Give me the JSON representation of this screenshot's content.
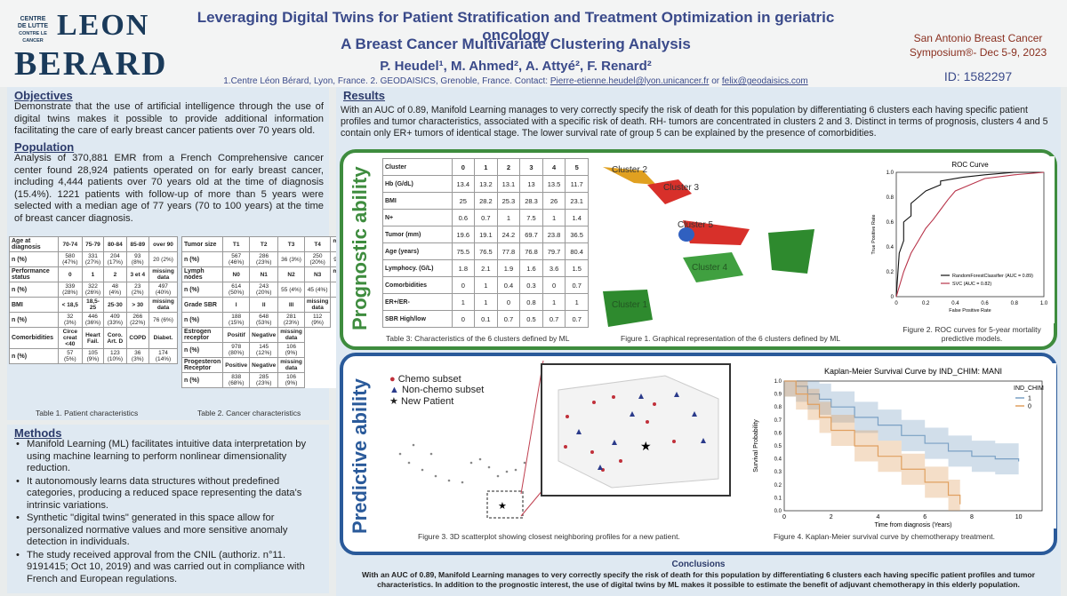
{
  "header": {
    "logo_small": [
      "CENTRE",
      "DE LUTTE",
      "CONTRE LE CANCER"
    ],
    "logo_big": [
      "LEON",
      "BERARD"
    ],
    "title_line1": "Leveraging Digital Twins for Patient Stratification and Treatment Optimization in geriatric oncology",
    "title_line2": "A Breast Cancer Multivariate Clustering Analysis",
    "authors": "P. Heudel¹, M. Ahmed², A. Attyé², F. Renard²",
    "affiliations": "1.Centre Léon Bérard, Lyon, France. 2. GEODAISICS, Grenoble, France. Contact:",
    "email1": "Pierre-etienne.heudel@lyon.unicancer.fr",
    "or": "or",
    "email2": "felix@geodaisics.com",
    "conference_line1": "San Antonio Breast Cancer",
    "conference_line2": "Symposium®- Dec 5-9, 2023",
    "poster_id": "ID: 1582297"
  },
  "objectives": {
    "heading": "Objectives",
    "text": "Demonstrate that the use of artificial intelligence through the use of digital twins makes it possible to provide additional information facilitating the care of early breast cancer patients over 70 years old."
  },
  "population": {
    "heading": "Population",
    "text": "Analysis of 370,881 EMR from a French Comprehensive cancer center found 28,924 patients operated on for early breast cancer, including 4,444 patients over 70 years old at the time of diagnosis (15.4%). 1221 patients with follow-up of more than 5 years were selected with a median age of 77 years (70 to 100 years) at the time of breast cancer diagnosis."
  },
  "table1": {
    "caption": "Table 1. Patient characteristics",
    "rows": [
      {
        "cells": [
          "Age at diagnosis",
          "70-74",
          "75-79",
          "80-84",
          "85-89",
          "over 90"
        ],
        "header": true
      },
      {
        "cells": [
          "n (%)",
          "580 (47%)",
          "331 (27%)",
          "204 (17%)",
          "93 (8%)",
          "20 (2%)"
        ]
      },
      {
        "cells": [
          "Performance status",
          "0",
          "1",
          "2",
          "3 et 4",
          "missing data"
        ],
        "header": true
      },
      {
        "cells": [
          "n (%)",
          "339 (28%)",
          "322 (26%)",
          "48 (4%)",
          "23 (2%)",
          "497 (40%)"
        ]
      },
      {
        "cells": [
          "BMI",
          "< 18,5",
          "18,5-25",
          "25-30",
          "> 30",
          "missing data"
        ],
        "header": true
      },
      {
        "cells": [
          "n (%)",
          "32 (3%)",
          "446 (36%)",
          "409 (33%)",
          "266 (22%)",
          "76 (6%)"
        ]
      },
      {
        "cells": [
          "Comorbidities",
          "Circe creat <40",
          "Heart Fail.",
          "Coro. Art. D",
          "COPD",
          "Diabet."
        ],
        "header": true
      },
      {
        "cells": [
          "n (%)",
          "57 (5%)",
          "105 (9%)",
          "123 (10%)",
          "36 (3%)",
          "174 (14%)"
        ]
      }
    ]
  },
  "table2": {
    "caption": "Table 2. Cancer characteristics",
    "rows": [
      {
        "cells": [
          "Tumor size",
          "T1",
          "T2",
          "T3",
          "T4",
          "missing data"
        ],
        "header": true
      },
      {
        "cells": [
          "n (%)",
          "567 (46%)",
          "286 (23%)",
          "36 (3%)",
          "250 (20%)",
          "90 (7%)"
        ]
      },
      {
        "cells": [
          "Lymph nodes",
          "N0",
          "N1",
          "N2",
          "N3",
          "missing data"
        ],
        "header": true
      },
      {
        "cells": [
          "n (%)",
          "614 (50%)",
          "243 (20%)",
          "55 (4%)",
          "45 (4%)",
          "262 (21%)"
        ]
      },
      {
        "cells": [
          "Grade SBR",
          "I",
          "II",
          "III",
          "missing data"
        ],
        "header": true
      },
      {
        "cells": [
          "n (%)",
          "188 (15%)",
          "648 (53%)",
          "281 (23%)",
          "112 (9%)"
        ]
      },
      {
        "cells": [
          "Estrogen receptor",
          "Positif",
          "Negative",
          "missing data"
        ],
        "header": true
      },
      {
        "cells": [
          "n (%)",
          "978 (80%)",
          "145 (12%)",
          "106 (9%)"
        ]
      },
      {
        "cells": [
          "Progesteron Receptor",
          "Positive",
          "Negative",
          "missing data"
        ],
        "header": true
      },
      {
        "cells": [
          "n (%)",
          "838 (68%)",
          "285 (23%)",
          "106 (9%)"
        ]
      }
    ]
  },
  "methods": {
    "heading": "Methods",
    "items": [
      "Manifold Learning (ML) facilitates intuitive data interpretation by using machine learning to perform nonlinear dimensionality reduction.",
      "It autonomously learns data structures without predefined categories, producing a reduced space representing the data's intrinsic variations.",
      "Synthetic \"digital twins\" generated in this space allow for personalized normative values and more sensitive anomaly detection in individuals.",
      "The study received approval from the CNIL (authoriz. n°11. 9191415; Oct 10, 2019) and was carried out in compliance with French and European regulations."
    ]
  },
  "results": {
    "heading": "Results",
    "text": "With an AUC of 0.89, Manifold Learning manages to very correctly specify the risk of death for this population by differentiating 6 clusters each having specific patient profiles and tumor characteristics, associated with a specific risk of death. RH- tumors are concentrated in clusters 2 and 3. Distinct in terms of prognosis, clusters 4 and 5 contain only ER+ tumors of identical stage. The lower survival rate of group 5 can be explained by the presence of comorbidities."
  },
  "prognostic": {
    "title": "Prognostic ability"
  },
  "predictive": {
    "title": "Predictive ability"
  },
  "table3": {
    "caption": "Table 3: Characteristics of the 6 clusters defined by ML",
    "header": [
      "Cluster",
      "0",
      "1",
      "2",
      "3",
      "4",
      "5"
    ],
    "rows": [
      [
        "Hb (G/dL)",
        "13.4",
        "13.2",
        "13.1",
        "13",
        "13.5",
        "11.7"
      ],
      [
        "BMI",
        "25",
        "28.2",
        "25.3",
        "28.3",
        "26",
        "23.1"
      ],
      [
        "N+",
        "0.6",
        "0.7",
        "1",
        "7.5",
        "1",
        "1.4"
      ],
      [
        "Tumor (mm)",
        "19.6",
        "19.1",
        "24.2",
        "69.7",
        "23.8",
        "36.5"
      ],
      [
        "Age (years)",
        "75.5",
        "76.5",
        "77.8",
        "76.8",
        "79.7",
        "80.4"
      ],
      [
        "Lymphocy. (G/L)",
        "1.8",
        "2.1",
        "1.9",
        "1.6",
        "3.6",
        "1.5"
      ],
      [
        "Comorbidities",
        "0",
        "1",
        "0.4",
        "0.3",
        "0",
        "0.7"
      ],
      [
        "ER+/ER-",
        "1",
        "1",
        "0",
        "0.8",
        "1",
        "1"
      ],
      [
        "SBR High/low",
        "0",
        "0.1",
        "0.7",
        "0.5",
        "0.7",
        "0.7"
      ]
    ]
  },
  "fig1": {
    "caption": "Figure 1. Graphical representation of the 6 clusters defined by ML",
    "labels": [
      "Cluster 2",
      "Cluster 3",
      "Cluster 5",
      "Cluster 4",
      "Cluster 1"
    ]
  },
  "fig2": {
    "caption_line1": "Figure 2. ROC curves for 5-year mortality",
    "caption_line2": "predictive models."
  },
  "fig3": {
    "caption": "Figure 3. 3D scatterplot showing closest neighboring profiles for a new patient.",
    "legend": [
      "Chemo subset",
      "Non-chemo subset",
      "New Patient"
    ]
  },
  "fig4": {
    "caption": "Figure 4. Kaplan-Meier survival curve by chemotherapy treatment."
  },
  "chart_data": [
    {
      "type": "line",
      "title": "ROC Curve",
      "xlabel": "False Positive Rate",
      "ylabel": "True Positive Rate",
      "xlim": [
        0,
        1
      ],
      "ylim": [
        0,
        1
      ],
      "xticks": [
        "0",
        "0.2",
        "0.4",
        "0.6",
        "0.8",
        "1.0"
      ],
      "yticks": [
        "0",
        "0.2",
        "0.4",
        "0.6",
        "0.8",
        "1.0"
      ],
      "legend_position": "bottom-right",
      "series": [
        {
          "name": "RandomForestClassifier (AUC = 0.89)",
          "color": "#111111",
          "x": [
            0,
            0.02,
            0.05,
            0.05,
            0.1,
            0.1,
            0.15,
            0.2,
            0.3,
            0.3,
            0.45,
            0.6,
            0.8,
            1
          ],
          "y": [
            0,
            0.35,
            0.45,
            0.6,
            0.65,
            0.75,
            0.8,
            0.85,
            0.9,
            0.93,
            0.96,
            0.98,
            1,
            1
          ]
        },
        {
          "name": "SVC (AUC = 0.82)",
          "color": "#b8344a",
          "x": [
            0,
            0.05,
            0.1,
            0.15,
            0.2,
            0.25,
            0.3,
            0.35,
            0.4,
            0.5,
            0.6,
            0.8,
            1
          ],
          "y": [
            0,
            0.2,
            0.35,
            0.45,
            0.55,
            0.62,
            0.7,
            0.78,
            0.85,
            0.9,
            0.95,
            0.98,
            1
          ]
        }
      ]
    },
    {
      "type": "line",
      "title": "Kaplan-Meier Survival Curve by IND_CHIM: MANI",
      "xlabel": "Time from diagnosis (Years)",
      "ylabel": "Survival Probability",
      "xlim": [
        0,
        11
      ],
      "ylim": [
        0,
        1
      ],
      "xticks": [
        "0",
        "2",
        "4",
        "6",
        "8",
        "10"
      ],
      "yticks": [
        "0.0",
        "0.1",
        "0.2",
        "0.3",
        "0.4",
        "0.5",
        "0.6",
        "0.7",
        "0.8",
        "0.9",
        "1.0"
      ],
      "legend_title": "IND_CHIM",
      "legend_position": "top-right",
      "series": [
        {
          "name": "1",
          "color": "#7aa0c4",
          "x": [
            0,
            0.5,
            1,
            1.5,
            2,
            3,
            4,
            5,
            6,
            7,
            8,
            9,
            10
          ],
          "y": [
            1,
            0.96,
            0.9,
            0.86,
            0.8,
            0.72,
            0.66,
            0.58,
            0.52,
            0.46,
            0.42,
            0.4,
            0.38
          ]
        },
        {
          "name": "0",
          "color": "#e0a060",
          "x": [
            0,
            0.5,
            1,
            1.5,
            2,
            3,
            4,
            5,
            6,
            7,
            7.5
          ],
          "y": [
            1,
            0.9,
            0.82,
            0.72,
            0.62,
            0.5,
            0.42,
            0.32,
            0.22,
            0.12,
            0.05
          ]
        }
      ]
    }
  ],
  "conclusions": {
    "heading": "Conclusions",
    "text": "With an AUC of 0.89, Manifold Learning manages to very correctly specify the risk of death for this population by differentiating 6 clusters each having specific patient profiles and tumor characteristics. In addition to the prognostic interest, the use of digital twins by ML makes it possible to estimate the benefit of adjuvant chemotherapy in this elderly population."
  },
  "colors": {
    "title_blue": "#3a4a8a",
    "section_bg": "#dfe9f2",
    "prognostic_green": "#3e8c3e",
    "predictive_blue": "#2a5a9a",
    "conference_red": "#8a3020"
  }
}
